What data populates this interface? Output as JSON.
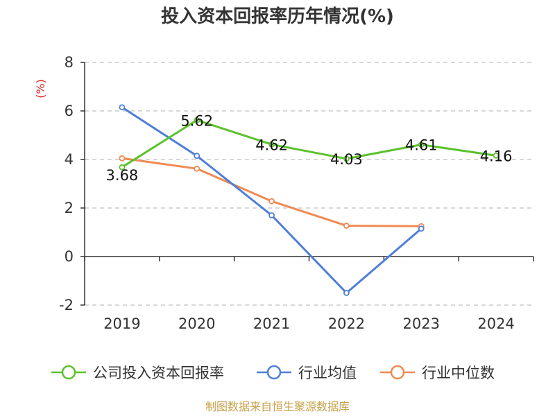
{
  "chart_data": {
    "type": "line",
    "title": "投入资本回报率历年情况(%)",
    "ylabel": "(%)",
    "xlabel": "",
    "categories": [
      "2019",
      "2020",
      "2021",
      "2022",
      "2023",
      "2024"
    ],
    "ylim": [
      -2,
      8
    ],
    "yticks": [
      -2,
      0,
      2,
      4,
      6,
      8
    ],
    "grid": true,
    "legend_position": "bottom",
    "series": [
      {
        "name": "公司投入资本回报率",
        "color": "#5cc12c",
        "values": [
          3.68,
          5.62,
          4.62,
          4.03,
          4.61,
          4.16
        ],
        "labels": [
          "3.68",
          "5.62",
          "4.62",
          "4.03",
          "4.61",
          "4.16"
        ]
      },
      {
        "name": "行业均值",
        "color": "#4e7ed8",
        "values": [
          6.15,
          4.15,
          1.7,
          -1.5,
          1.15,
          null
        ]
      },
      {
        "name": "行业中位数",
        "color": "#f08a52",
        "values": [
          4.05,
          3.62,
          2.28,
          1.27,
          1.25,
          null
        ]
      }
    ]
  },
  "source_text": "制图数据来自恒生聚源数据库",
  "colors": {
    "unit": "#e02020",
    "source": "#c8a14a",
    "grid": "#cccccc",
    "axis": "#333333"
  }
}
